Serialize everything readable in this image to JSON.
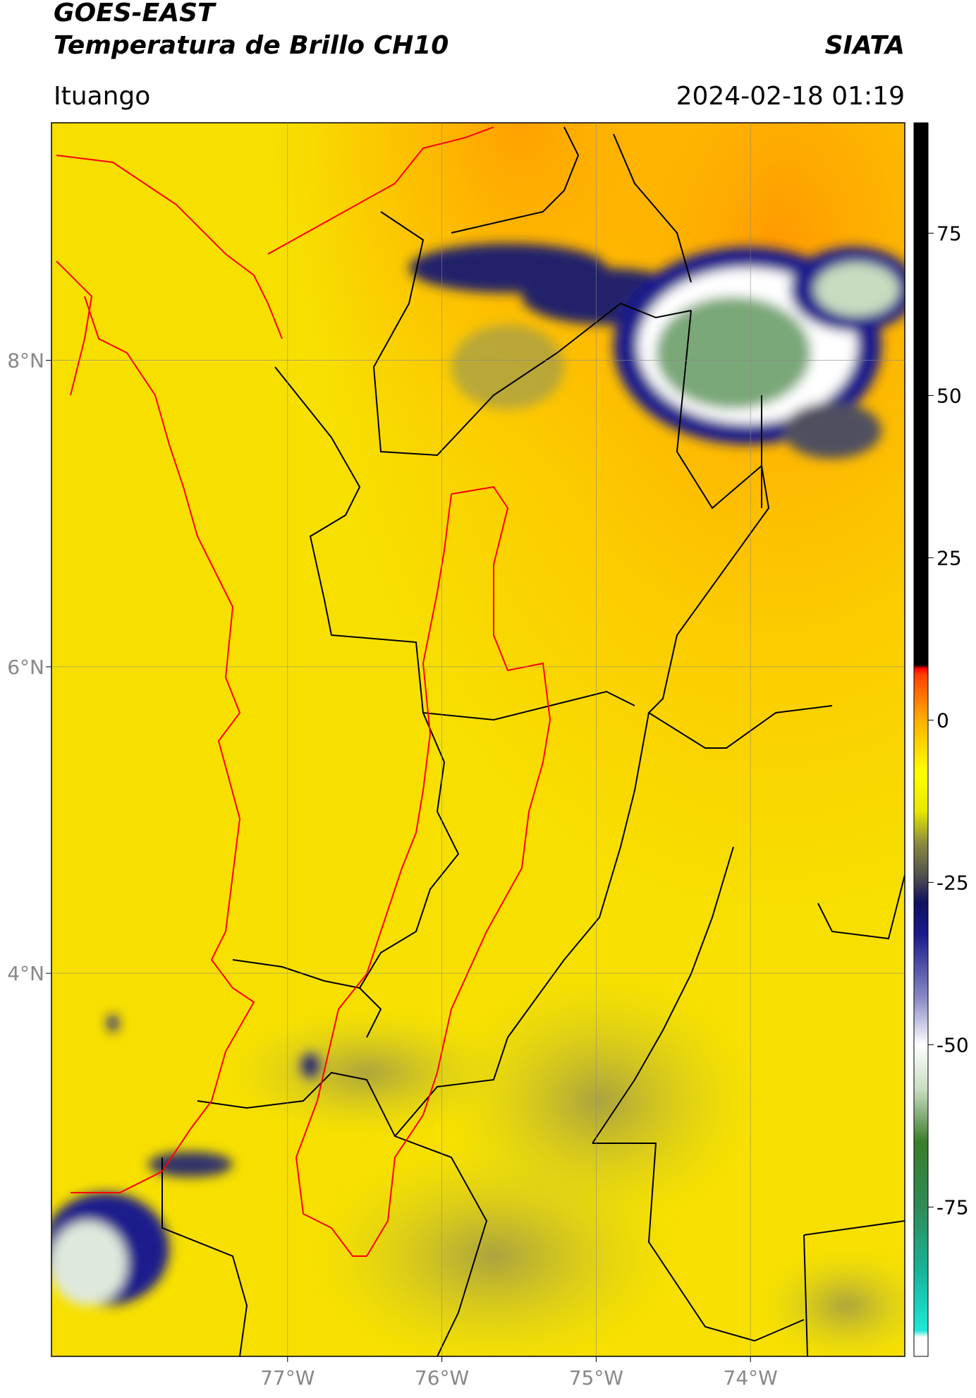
{
  "header": {
    "title": "GOES-EAST",
    "subtitle": "Temperatura de Brillo CH10",
    "source": "SIATA",
    "location": "Ituango",
    "datetime": "2024-02-18 01:19"
  },
  "map": {
    "lon_range": [
      -78.53,
      -73.0
    ],
    "lat_range": [
      1.5,
      9.55
    ],
    "lon_ticks": [
      {
        "value": -77,
        "label": "77°W"
      },
      {
        "value": -76,
        "label": "76°W"
      },
      {
        "value": -75,
        "label": "75°W"
      },
      {
        "value": -74,
        "label": "74°W"
      }
    ],
    "lat_ticks": [
      {
        "value": 8,
        "label": "8°N"
      },
      {
        "value": 6,
        "label": "6°N"
      },
      {
        "value": 4,
        "label": "4°N"
      }
    ],
    "grid": true
  },
  "colorbar": {
    "range": [
      -98,
      92
    ],
    "ticks": [
      75,
      50,
      25,
      0,
      -25,
      -50,
      -75
    ],
    "colorscale": [
      {
        "value": -98,
        "color": "#ffffff"
      },
      {
        "value": -95,
        "color": "#ffffff"
      },
      {
        "value": -94,
        "color": "#1fe8d8"
      },
      {
        "value": -85,
        "color": "#18b49a"
      },
      {
        "value": -75,
        "color": "#2e8b57"
      },
      {
        "value": -65,
        "color": "#3a7d2a"
      },
      {
        "value": -57,
        "color": "#c8dcc0"
      },
      {
        "value": -50,
        "color": "#ffffff"
      },
      {
        "value": -43,
        "color": "#8c8cc8"
      },
      {
        "value": -33,
        "color": "#1a1a8c"
      },
      {
        "value": -28,
        "color": "#101060"
      },
      {
        "value": -24,
        "color": "#505050"
      },
      {
        "value": -19,
        "color": "#8a8a40"
      },
      {
        "value": -14,
        "color": "#e8e800"
      },
      {
        "value": -8,
        "color": "#ffff00"
      },
      {
        "value": 0,
        "color": "#ffb000"
      },
      {
        "value": 7,
        "color": "#ff4000"
      },
      {
        "value": 8,
        "color": "#ff0000"
      },
      {
        "value": 8.5,
        "color": "#000000"
      },
      {
        "value": 92,
        "color": "#000000"
      }
    ]
  }
}
